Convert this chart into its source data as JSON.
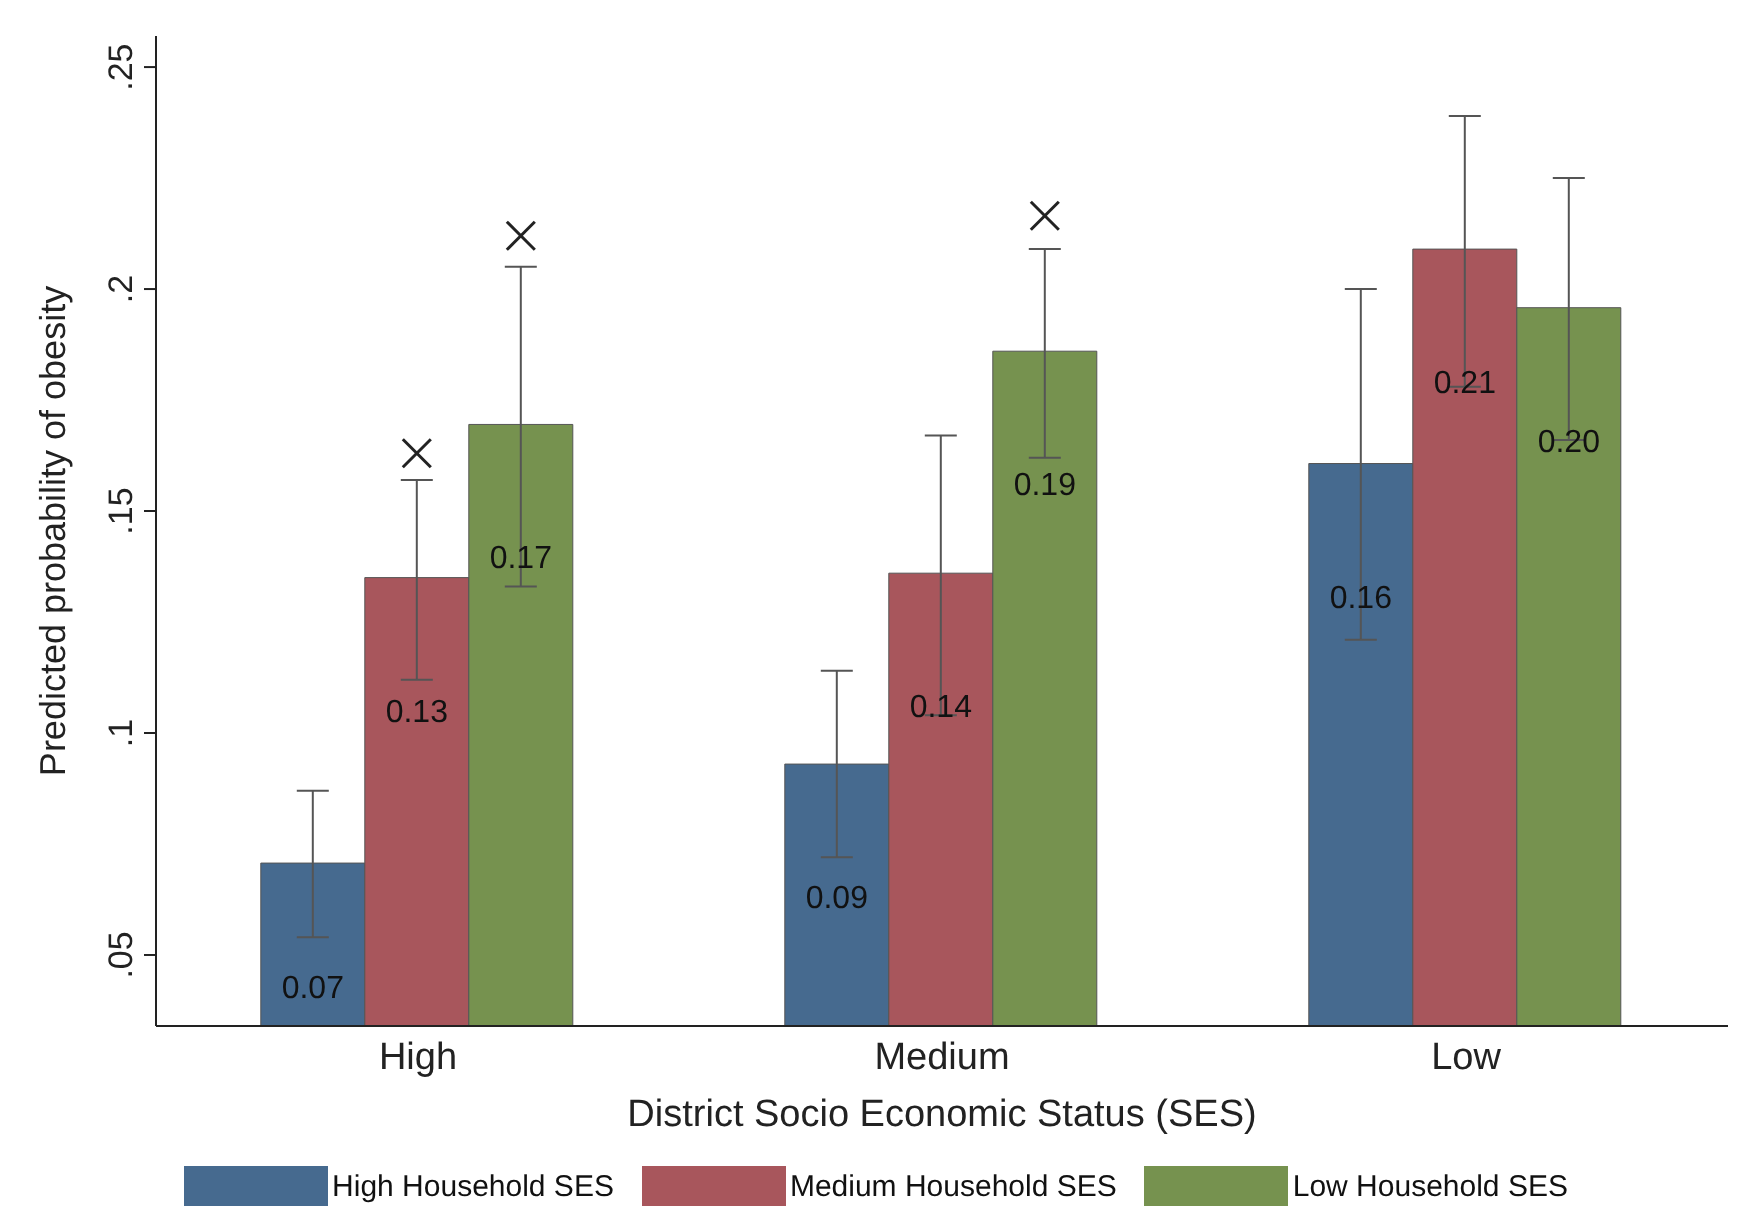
{
  "chart_data": {
    "type": "bar",
    "xlabel": "District Socio Economic Status (SES)",
    "ylabel": "Predicted probability of obesity",
    "categories": [
      "High",
      "Medium",
      "Low"
    ],
    "series": [
      {
        "name": "High Household SES",
        "color": "#466a8f",
        "values": [
          0.0707,
          0.093,
          0.1607
        ],
        "errors": [
          [
            0.054,
            0.087
          ],
          [
            0.072,
            0.114
          ],
          [
            0.121,
            0.2
          ]
        ],
        "value_labels": [
          "0.07",
          "0.09",
          "0.16"
        ]
      },
      {
        "name": "Medium Household SES",
        "color": "#a8565c",
        "values": [
          0.135,
          0.136,
          0.209
        ],
        "errors": [
          [
            0.112,
            0.157
          ],
          [
            0.104,
            0.167
          ],
          [
            0.178,
            0.239
          ]
        ],
        "value_labels": [
          "0.13",
          "0.14",
          "0.21"
        ]
      },
      {
        "type": "scatter",
        "marker": "cross",
        "color": "#222222",
        "values": [
          0.163,
          null,
          null
        ]
      },
      {
        "name": "Low Household SES",
        "color": "#76924f",
        "values": [
          0.1695,
          0.186,
          0.1958
        ],
        "errors": [
          [
            0.133,
            0.205
          ],
          [
            0.162,
            0.209
          ],
          [
            0.166,
            0.225
          ]
        ],
        "value_labels": [
          "0.17",
          "0.19",
          "0.20"
        ]
      },
      {
        "type": "scatter",
        "marker": "cross",
        "color": "#222222",
        "values": [
          0.212,
          0.2165,
          null
        ]
      }
    ],
    "ylim": [
      0.034,
      0.257
    ],
    "yticks": [
      {
        "value": 0.05,
        "label": ".05"
      },
      {
        "value": 0.1,
        "label": ".1"
      },
      {
        "value": 0.15,
        "label": ".15"
      },
      {
        "value": 0.2,
        "label": ".2"
      },
      {
        "value": 0.25,
        "label": ".25"
      }
    ],
    "grid": false,
    "legend": "bottom"
  }
}
